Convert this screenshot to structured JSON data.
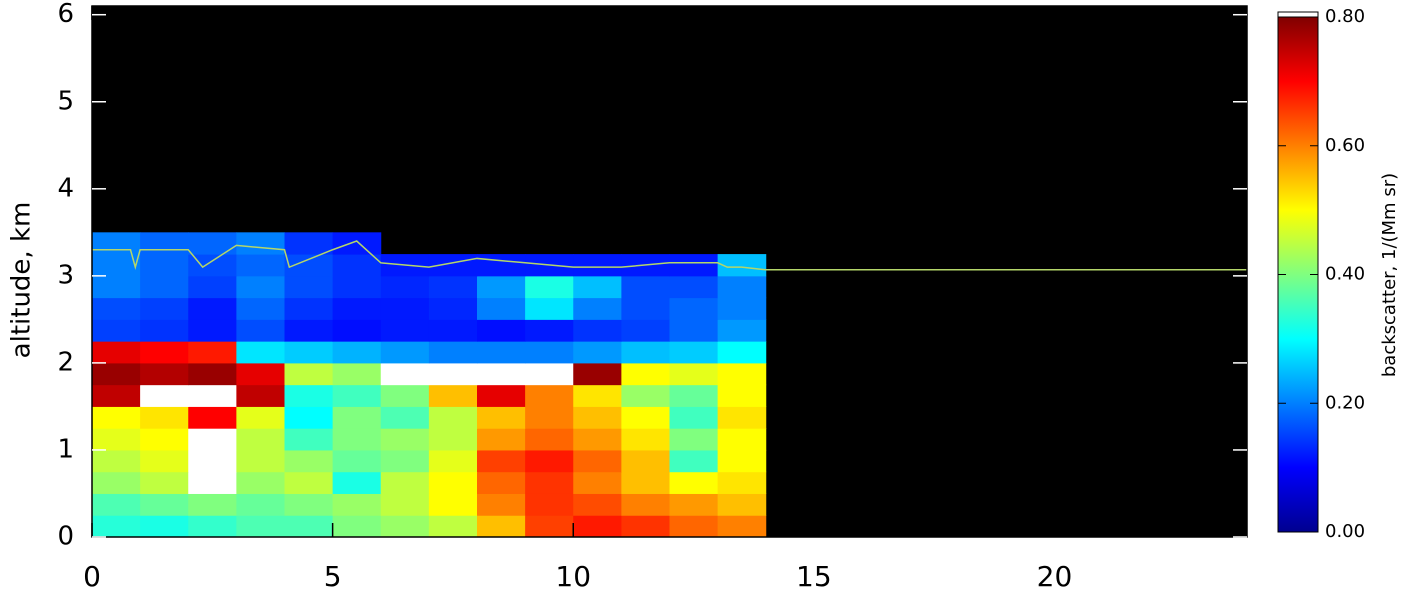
{
  "chart_data": {
    "type": "heatmap",
    "background": "#000000",
    "ylabel": "altitude, km",
    "xlim": [
      0,
      24
    ],
    "ylim": [
      0,
      6.1
    ],
    "xticks": [
      0,
      5,
      10,
      15,
      20
    ],
    "yticks": [
      0,
      1,
      2,
      3,
      4,
      5,
      6
    ],
    "x_bins": [
      0,
      1,
      2,
      3,
      4,
      5,
      6,
      7,
      8,
      9,
      10,
      11,
      12,
      13,
      14
    ],
    "y_bins": [
      0,
      0.25,
      0.5,
      0.75,
      1,
      1.25,
      1.5,
      1.75,
      2,
      2.25,
      2.5,
      2.75,
      3,
      3.25,
      3.5
    ],
    "z": [
      [
        0.33,
        0.32,
        0.34,
        0.36,
        0.36,
        0.4,
        0.42,
        0.45,
        0.55,
        0.65,
        0.68,
        0.66,
        0.62,
        0.6
      ],
      [
        0.36,
        0.38,
        0.4,
        0.38,
        0.4,
        0.42,
        0.45,
        0.5,
        0.6,
        0.66,
        0.64,
        0.6,
        0.58,
        0.55
      ],
      [
        0.42,
        0.45,
        0.85,
        0.42,
        0.45,
        0.32,
        0.45,
        0.5,
        0.62,
        0.66,
        0.6,
        0.55,
        0.5,
        0.52
      ],
      [
        0.45,
        0.48,
        0.85,
        0.45,
        0.42,
        0.38,
        0.4,
        0.48,
        0.65,
        0.68,
        0.62,
        0.55,
        0.35,
        0.5
      ],
      [
        0.48,
        0.5,
        0.85,
        0.45,
        0.35,
        0.4,
        0.42,
        0.45,
        0.58,
        0.62,
        0.58,
        0.52,
        0.4,
        0.5
      ],
      [
        0.5,
        0.52,
        0.7,
        0.48,
        0.3,
        0.4,
        0.36,
        0.45,
        0.55,
        0.6,
        0.55,
        0.5,
        0.35,
        0.52
      ],
      [
        0.75,
        0.85,
        0.85,
        0.75,
        0.32,
        0.35,
        0.4,
        0.55,
        0.72,
        0.6,
        0.52,
        0.42,
        0.38,
        0.5
      ],
      [
        0.78,
        0.76,
        0.78,
        0.72,
        0.45,
        0.42,
        0.85,
        0.85,
        0.85,
        0.85,
        0.78,
        0.5,
        0.48,
        0.5
      ],
      [
        0.72,
        0.7,
        0.68,
        0.28,
        0.26,
        0.24,
        0.22,
        0.2,
        0.2,
        0.2,
        0.22,
        0.25,
        0.26,
        0.3
      ],
      [
        0.15,
        0.14,
        0.12,
        0.16,
        0.12,
        0.11,
        0.12,
        0.12,
        0.11,
        0.12,
        0.14,
        0.15,
        0.18,
        0.22
      ],
      [
        0.16,
        0.15,
        0.12,
        0.18,
        0.14,
        0.12,
        0.12,
        0.13,
        0.2,
        0.28,
        0.2,
        0.16,
        0.18,
        0.2
      ],
      [
        0.2,
        0.18,
        0.15,
        0.2,
        0.16,
        0.14,
        0.13,
        0.14,
        0.22,
        0.32,
        0.25,
        0.16,
        0.16,
        0.2
      ],
      [
        0.2,
        0.18,
        0.16,
        0.18,
        0.16,
        0.14,
        0.12,
        0.12,
        0.12,
        0.12,
        0.12,
        0.12,
        0.12,
        0.25
      ],
      [
        0.2,
        0.18,
        0.18,
        0.2,
        0.14,
        0.12,
        null,
        null,
        null,
        null,
        null,
        null,
        null,
        null
      ]
    ],
    "colorbar": {
      "label": "backscatter, 1/(Mm sr)",
      "lim": [
        0,
        0.8
      ],
      "ticks": [
        {
          "value": 0,
          "label": "0.00"
        },
        {
          "value": 0.2,
          "label": "0.20"
        },
        {
          "value": 0.4,
          "label": "0.40"
        },
        {
          "value": 0.6,
          "label": "0.60"
        },
        {
          "value": 0.8,
          "label": "0.80"
        }
      ],
      "colors": [
        "#00008f",
        "#0000ff",
        "#00ffff",
        "#ffff00",
        "#ff0000",
        "#800000"
      ],
      "color_stops": [
        0,
        0.1,
        0.3,
        0.5,
        0.7,
        0.8
      ],
      "over_color": "#ffffff"
    },
    "line": {
      "color": "#b4d66a",
      "x": [
        0,
        0.8,
        0.9,
        1.0,
        2.0,
        2.3,
        3,
        4,
        4.1,
        5,
        5.5,
        6,
        7,
        8,
        9,
        10,
        11,
        12,
        13,
        13.2,
        13.5,
        14,
        24
      ],
      "values": [
        3.3,
        3.3,
        3.1,
        3.3,
        3.3,
        3.1,
        3.35,
        3.3,
        3.1,
        3.3,
        3.4,
        3.15,
        3.1,
        3.2,
        3.15,
        3.1,
        3.1,
        3.15,
        3.15,
        3.1,
        3.1,
        3.07,
        3.07
      ]
    }
  }
}
